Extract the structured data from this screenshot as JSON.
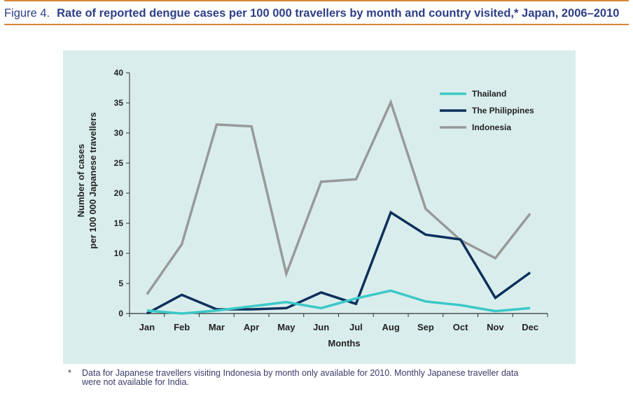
{
  "figure": {
    "number": "Figure 4.",
    "title": "Rate of reported dengue cases per 100 000 travellers by month and country visited,* Japan, 2006–2010"
  },
  "footnote": {
    "marker": "*",
    "text_line1": "Data for Japanese travellers visiting Indonesia by month only available for 2010. Monthly Japanese traveller data",
    "text_line2": "were not available for India."
  },
  "colors": {
    "title": "#2e3f87",
    "rule": "#d6863a",
    "panel_bg": "#d9eeec",
    "Thailand": "#3cc8c8",
    "The Philippines": "#0d2f5c",
    "Indonesia": "#999999"
  },
  "chart_data": {
    "type": "line",
    "title": "Rate of reported dengue cases per 100 000 travellers by month and country visited, Japan, 2006–2010",
    "xlabel": "Months",
    "ylabel_line1": "Number of cases",
    "ylabel_line2": "per 100 000 Japanese travellers",
    "categories": [
      "Jan",
      "Feb",
      "Mar",
      "Apr",
      "May",
      "Jun",
      "Jul",
      "Aug",
      "Sep",
      "Oct",
      "Nov",
      "Dec"
    ],
    "yticks": [
      "0",
      "5",
      "10",
      "15",
      "20",
      "25",
      "30",
      "35",
      "40"
    ],
    "ylim": [
      0,
      40
    ],
    "grid": false,
    "legend_position": "top-right",
    "series": [
      {
        "name": "Thailand",
        "values": [
          0.5,
          0.0,
          0.5,
          1.2,
          1.9,
          0.9,
          2.5,
          3.8,
          2.0,
          1.4,
          0.4,
          0.9
        ]
      },
      {
        "name": "The Philippines",
        "values": [
          0.0,
          3.1,
          0.7,
          0.7,
          0.9,
          3.5,
          1.6,
          16.8,
          13.1,
          12.3,
          2.6,
          6.8
        ]
      },
      {
        "name": "Indonesia",
        "values": [
          3.2,
          11.5,
          31.4,
          31.1,
          6.6,
          21.9,
          22.3,
          35.1,
          17.4,
          12.2,
          9.2,
          16.6
        ]
      }
    ]
  }
}
